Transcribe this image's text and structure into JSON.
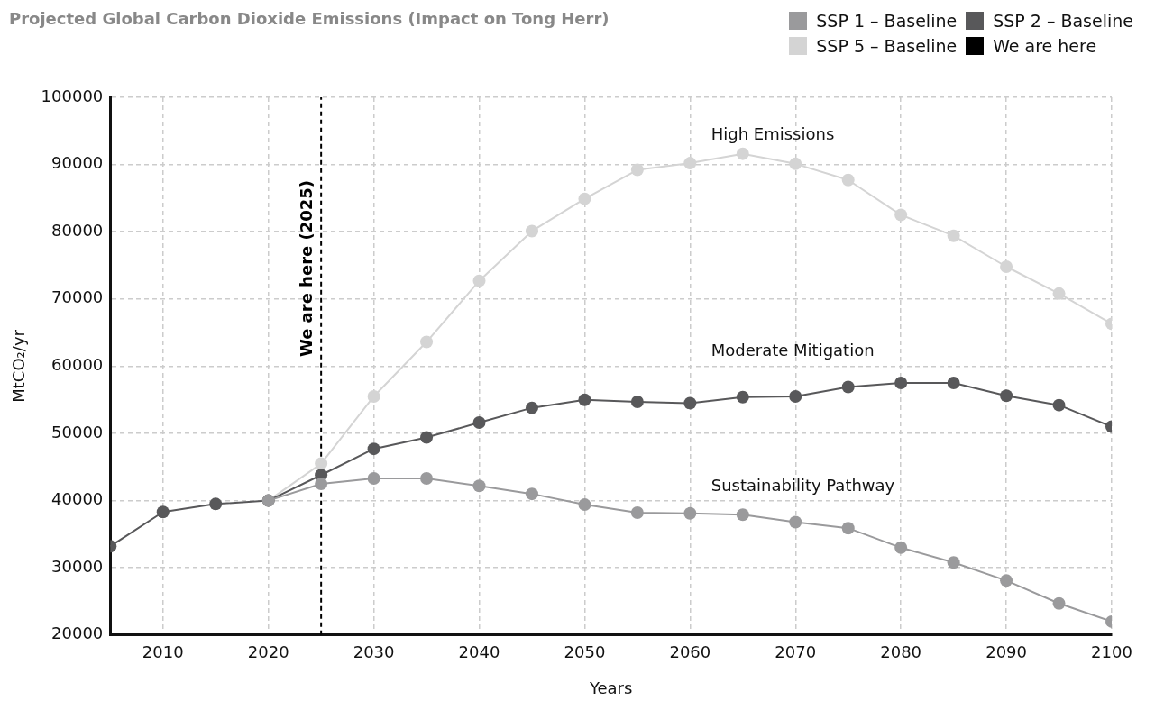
{
  "chart_data": {
    "type": "line",
    "title": "Projected Global Carbon Dioxide Emissions (Impact on Tong Herr)",
    "xlabel": "Years",
    "ylabel": "MtCO₂/yr",
    "xlim": [
      2005,
      2100
    ],
    "xticks": [
      2010,
      2020,
      2030,
      2040,
      2050,
      2060,
      2070,
      2080,
      2090,
      2100
    ],
    "ylim": [
      20000,
      100000
    ],
    "yticks": [
      20000,
      30000,
      40000,
      50000,
      60000,
      70000,
      80000,
      90000,
      100000
    ],
    "grid": true,
    "legend": "top right",
    "marker": "circle",
    "line_style": "solid",
    "series": [
      {
        "name": "SSP 1 – Baseline",
        "color": "#9a9a9c",
        "x": [
          2020,
          2025,
          2030,
          2035,
          2040,
          2045,
          2050,
          2055,
          2060,
          2065,
          2070,
          2075,
          2080,
          2085,
          2090,
          2095,
          2100
        ],
        "values": [
          40000,
          42500,
          43300,
          43300,
          42200,
          41000,
          39400,
          38200,
          38100,
          37900,
          36800,
          35900,
          33000,
          30800,
          28100,
          24700,
          22000
        ]
      },
      {
        "name": "SSP 2 – Baseline",
        "color": "#58585a",
        "x": [
          2005,
          2010,
          2015,
          2020,
          2025,
          2030,
          2035,
          2040,
          2045,
          2050,
          2055,
          2060,
          2065,
          2070,
          2075,
          2080,
          2085,
          2090,
          2095,
          2100
        ],
        "values": [
          33200,
          38300,
          39500,
          40000,
          43800,
          47700,
          49400,
          51600,
          53800,
          55000,
          54700,
          54500,
          55400,
          55500,
          56900,
          57500,
          57500,
          55600,
          54200,
          51000
        ]
      },
      {
        "name": "SSP 5 – Baseline",
        "color": "#d4d4d4",
        "x": [
          2020,
          2025,
          2030,
          2035,
          2040,
          2045,
          2050,
          2055,
          2060,
          2065,
          2070,
          2075,
          2080,
          2085,
          2090,
          2095,
          2100
        ],
        "values": [
          40000,
          45500,
          55500,
          63600,
          72700,
          80100,
          84900,
          89200,
          90200,
          91600,
          90100,
          87700,
          82500,
          79400,
          74800,
          70800,
          66300
        ]
      },
      {
        "name": "We are here",
        "color": "#000000",
        "type": "line",
        "line_style": "dashed",
        "marker": "none",
        "x": [
          2025,
          2025
        ],
        "values": [
          20000,
          100000
        ]
      }
    ],
    "annotations": [
      {
        "text": "We are here (2025)",
        "x": 2025
      },
      "High Emissions",
      "Moderate Mitigation",
      "Sustainability Pathway"
    ]
  }
}
